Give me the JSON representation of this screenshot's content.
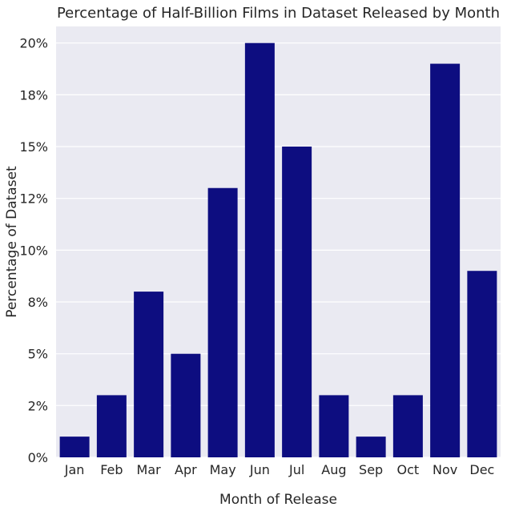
{
  "chart_data": {
    "type": "bar",
    "title": "Percentage of Half-Billion Films in Dataset Released by Month",
    "xlabel": "Month of Release",
    "ylabel": "Percentage of Dataset",
    "categories": [
      "Jan",
      "Feb",
      "Mar",
      "Apr",
      "May",
      "Jun",
      "Jul",
      "Aug",
      "Sep",
      "Oct",
      "Nov",
      "Dec"
    ],
    "values": [
      1.0,
      3.0,
      8.0,
      5.0,
      13.0,
      20.0,
      15.0,
      3.0,
      1.0,
      3.0,
      19.0,
      9.0
    ],
    "yticks": [
      0,
      2.5,
      5,
      7.5,
      10,
      12.5,
      15,
      17.5,
      20
    ],
    "ytick_labels": [
      "0%",
      "2%",
      "5%",
      "8%",
      "10%",
      "12%",
      "15%",
      "18%",
      "20%"
    ],
    "ylim": [
      0,
      20.8
    ],
    "grid": true,
    "colors": {
      "bar": "#0d0d80",
      "plot_background": "#eaeaf2",
      "grid": "#ffffff"
    }
  }
}
